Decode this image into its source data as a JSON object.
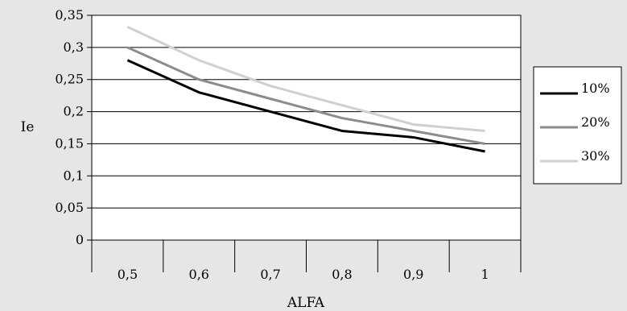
{
  "chart_data": {
    "type": "line",
    "title": "",
    "xlabel": "ALFA",
    "ylabel": "Ie",
    "categories": [
      "0,5",
      "0,6",
      "0,7",
      "0,8",
      "0,9",
      "1"
    ],
    "ylim": [
      0,
      0.35
    ],
    "yticks": [
      "0",
      "0,05",
      "0,1",
      "0,15",
      "0,2",
      "0,25",
      "0,3",
      "0,35"
    ],
    "grid": true,
    "legend_position": "right",
    "series": [
      {
        "name": "10%",
        "color": "#000000",
        "values": [
          0.28,
          0.23,
          0.2,
          0.17,
          0.16,
          0.138
        ]
      },
      {
        "name": "20%",
        "color": "#8c8c8c",
        "values": [
          0.3,
          0.25,
          0.22,
          0.19,
          0.17,
          0.15
        ]
      },
      {
        "name": "30%",
        "color": "#d0d0d0",
        "values": [
          0.332,
          0.28,
          0.24,
          0.21,
          0.18,
          0.17
        ]
      }
    ]
  }
}
